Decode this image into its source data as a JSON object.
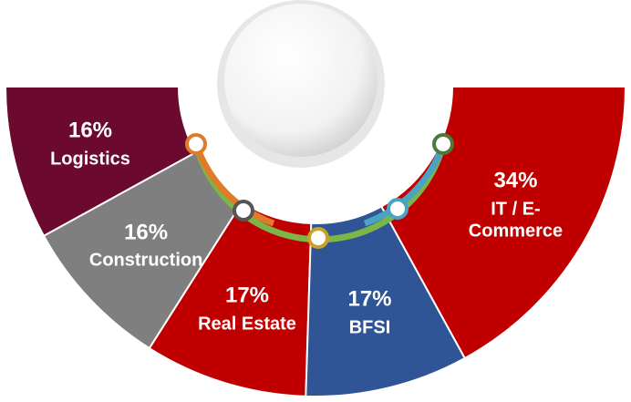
{
  "chart_data": {
    "type": "pie",
    "categories": [
      "Logistics",
      "Construction",
      "Real Estate",
      "BFSI",
      "IT / E-Commerce"
    ],
    "values": [
      16,
      16,
      17,
      17,
      34
    ],
    "value_labels": [
      "16%",
      "16%",
      "17%",
      "17%",
      "34%"
    ],
    "colors": [
      "#6b0a2e",
      "#7f7f7f",
      "#c00000",
      "#2f5597",
      "#c00000"
    ]
  }
}
